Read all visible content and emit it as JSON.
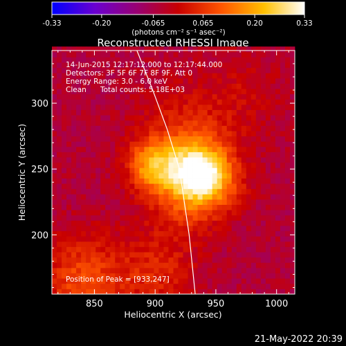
{
  "colorbar": {
    "tick_labels": [
      "-0.33",
      "-0.20",
      "-0.065",
      "0.065",
      "0.20",
      "0.33"
    ],
    "tick_values": [
      -0.33,
      -0.2,
      -0.065,
      0.065,
      0.2,
      0.33
    ],
    "range": [
      -0.33,
      0.33
    ],
    "units": "(photons cm⁻² s⁻¹ asec⁻²)",
    "colors": [
      "#0000ff",
      "#6a00d0",
      "#9a0070",
      "#c80000",
      "#ff5500",
      "#ffc000",
      "#ffffff"
    ]
  },
  "info": {
    "time": "14-Jun-2015 12:17:12.000 to 12:17:44.000",
    "detectors": "Detectors: 3F 5F 6F 7F 8F 9F, Att 0",
    "energy": "Energy Range: 3.0 - 6.0 keV",
    "clean_label": "Clean",
    "total_counts": "Total counts: 5.18E+03",
    "peak": "Position of Peak = [933,247]"
  },
  "footer": {
    "date": "21-May-2022 20:39"
  },
  "chart_data": {
    "type": "heatmap",
    "title": "Reconstructed RHESSI Image",
    "xlabel": "Heliocentric X (arcsec)",
    "ylabel": "Heliocentric Y (arcsec)",
    "xlim": [
      815,
      1015
    ],
    "ylim": [
      155,
      340
    ],
    "x_ticks": [
      850,
      900,
      950,
      1000
    ],
    "y_ticks": [
      200,
      250,
      300
    ],
    "x_tick_labels": [
      "850",
      "900",
      "950",
      "1000"
    ],
    "y_tick_labels": [
      "200",
      "250",
      "300"
    ],
    "peak_position": [
      933,
      247
    ],
    "components": [
      {
        "x": 935,
        "y": 247,
        "sigma": 16,
        "amp": 0.33
      },
      {
        "x": 898,
        "y": 253,
        "sigma": 14,
        "amp": 0.22
      },
      {
        "x": 928,
        "y": 272,
        "sigma": 28,
        "amp": 0.1
      },
      {
        "x": 925,
        "y": 225,
        "sigma": 20,
        "amp": 0.09
      },
      {
        "x": 955,
        "y": 240,
        "sigma": 15,
        "amp": 0.08
      },
      {
        "x": 840,
        "y": 165,
        "sigma": 24,
        "amp": 0.14
      },
      {
        "x": 900,
        "y": 172,
        "sigma": 22,
        "amp": 0.09
      },
      {
        "x": 975,
        "y": 310,
        "sigma": 22,
        "amp": 0.04
      }
    ],
    "background_level": -0.05,
    "limb_curve": {
      "x": [
        885,
        898,
        910,
        920,
        928,
        933
      ],
      "y": [
        340,
        310,
        280,
        250,
        200,
        155
      ]
    }
  }
}
